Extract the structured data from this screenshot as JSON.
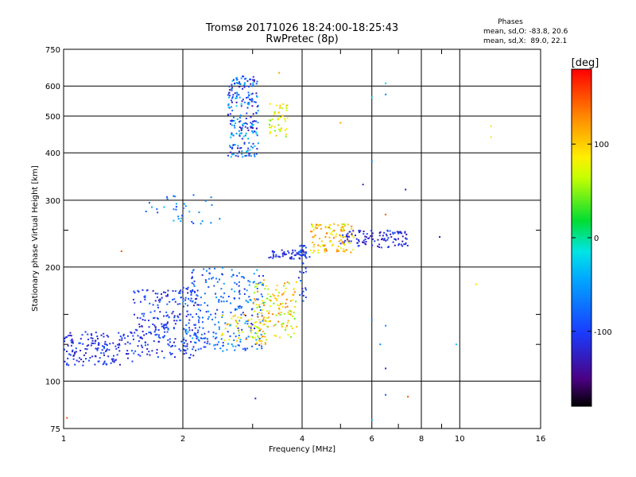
{
  "title": "Tromsø 20171026 18:24:00-18:25:43",
  "subtitle": "RwPretec (8p)",
  "phase_info": {
    "heading": "Phases",
    "line_o": "mean, sd,O: -83.8, 20.6",
    "line_x": "mean, sd,X:  89.0, 22.1"
  },
  "chart_data": {
    "type": "scatter",
    "xlabel": "Frequency [MHz]",
    "ylabel": "Stationary phase Virtual Height [km]",
    "x_scale": "log",
    "y_scale": "log",
    "xlim": [
      1,
      16
    ],
    "ylim": [
      75,
      750
    ],
    "x_ticks": [
      1,
      2,
      4,
      6,
      8,
      10,
      16
    ],
    "x_tick_labels": [
      "1",
      "2",
      "4",
      "6",
      "8",
      "10",
      "16"
    ],
    "x_minor_ticks": [
      3,
      5,
      7,
      9
    ],
    "y_ticks": [
      75,
      100,
      200,
      300,
      400,
      500,
      600,
      750
    ],
    "y_tick_labels": [
      "75",
      "100",
      "200",
      "300",
      "400",
      "500",
      "600",
      "750"
    ],
    "y_minor_ticks": [
      125,
      150,
      250
    ],
    "grid": true,
    "colorbar": {
      "label": "[deg]",
      "range": [
        -180,
        180
      ],
      "ticks": [
        100,
        0,
        -100
      ],
      "tick_labels": [
        "100",
        "0",
        "-100"
      ],
      "colormap": "rainbow"
    },
    "clusters": [
      {
        "f": [
          1.0,
          1.5
        ],
        "h": [
          110,
          135
        ],
        "phase": [
          -130,
          -90
        ],
        "n": 160
      },
      {
        "f": [
          1.5,
          2.2
        ],
        "h": [
          115,
          175
        ],
        "phase": [
          -130,
          -80
        ],
        "n": 260
      },
      {
        "f": [
          2.0,
          3.2
        ],
        "h": [
          120,
          200
        ],
        "phase": [
          -120,
          -40
        ],
        "n": 260
      },
      {
        "f": [
          2.5,
          3.3
        ],
        "h": [
          125,
          150
        ],
        "phase": [
          60,
          130
        ],
        "n": 60
      },
      {
        "f": [
          3.0,
          3.9
        ],
        "h": [
          130,
          185
        ],
        "phase": [
          40,
          140
        ],
        "n": 130
      },
      {
        "f": [
          2.6,
          3.1
        ],
        "h": [
          390,
          640
        ],
        "phase": [
          -140,
          -20
        ],
        "n": 230
      },
      {
        "f": [
          3.3,
          3.7
        ],
        "h": [
          440,
          540
        ],
        "phase": [
          40,
          110
        ],
        "n": 45
      },
      {
        "f": [
          3.3,
          4.2
        ],
        "h": [
          210,
          222
        ],
        "phase": [
          -130,
          -90
        ],
        "n": 60
      },
      {
        "f": [
          4.2,
          5.4
        ],
        "h": [
          218,
          260
        ],
        "phase": [
          60,
          140
        ],
        "n": 110
      },
      {
        "f": [
          5.0,
          7.4
        ],
        "h": [
          225,
          250
        ],
        "phase": [
          -140,
          -90
        ],
        "n": 110
      },
      {
        "f": [
          3.9,
          4.1
        ],
        "h": [
          160,
          230
        ],
        "phase": [
          -130,
          -60
        ],
        "n": 35
      },
      {
        "f": [
          1.6,
          2.5
        ],
        "h": [
          260,
          310
        ],
        "phase": [
          -100,
          -30
        ],
        "n": 35
      }
    ],
    "scatter_points": [
      [
        1.02,
        80,
        150
      ],
      [
        3.05,
        90,
        -120
      ],
      [
        6.5,
        108,
        -120
      ],
      [
        6.5,
        92,
        -90
      ],
      [
        7.4,
        91,
        150
      ],
      [
        6.0,
        79,
        -40
      ],
      [
        11.0,
        180,
        90
      ],
      [
        12.0,
        470,
        90
      ],
      [
        12.0,
        440,
        90
      ],
      [
        6.5,
        610,
        -20
      ],
      [
        6.5,
        570,
        -60
      ],
      [
        6.0,
        560,
        -20
      ],
      [
        5.0,
        480,
        120
      ],
      [
        3.5,
        650,
        120
      ],
      [
        6.0,
        380,
        -60
      ],
      [
        5.7,
        330,
        -120
      ],
      [
        7.3,
        320,
        -140
      ],
      [
        8.9,
        240,
        -140
      ],
      [
        9.8,
        125,
        -30
      ],
      [
        6.0,
        145,
        -60
      ],
      [
        6.3,
        125,
        -60
      ],
      [
        6.5,
        140,
        -60
      ],
      [
        6.5,
        275,
        150
      ],
      [
        1.4,
        220,
        150
      ]
    ]
  },
  "axis_colors": {
    "frame": "#000000",
    "background": "#ffffff"
  }
}
